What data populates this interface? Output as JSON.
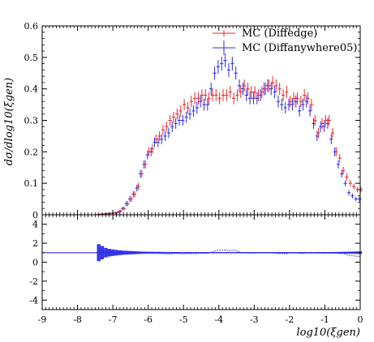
{
  "chart_data": {
    "type": "scatter",
    "main": {
      "ylabel": "dσ/dlog10(ξgen)",
      "ylim": [
        0,
        0.6
      ],
      "yticks": [
        0,
        0.1,
        0.2,
        0.3,
        0.4,
        0.5,
        0.6
      ],
      "ytick_labels": [
        "0",
        "0.1",
        "0.2",
        "0.3",
        "0.4",
        "0.5",
        "0.6"
      ],
      "legend_position": "top-right"
    },
    "ratio": {
      "ylim": [
        -5,
        5
      ],
      "yticks": [
        -4,
        -2,
        0,
        2,
        4
      ],
      "ytick_labels": [
        "-4",
        "-2",
        "0",
        "2",
        "4"
      ]
    },
    "xlim": [
      -9,
      0
    ],
    "xticks": [
      -9,
      -8,
      -7,
      -6,
      -5,
      -4,
      -3,
      -2,
      -1,
      0
    ],
    "xtick_labels": [
      "-9",
      "-8",
      "-7",
      "-6",
      "-5",
      "-4",
      "-3",
      "-2",
      "-1",
      "0"
    ],
    "xlabel": "log10(ξgen)",
    "x": [
      -7.4,
      -7.3,
      -7.2,
      -7.1,
      -7.0,
      -6.9,
      -6.8,
      -6.7,
      -6.6,
      -6.5,
      -6.4,
      -6.3,
      -6.2,
      -6.1,
      -6.0,
      -5.9,
      -5.8,
      -5.7,
      -5.6,
      -5.5,
      -5.4,
      -5.3,
      -5.2,
      -5.1,
      -5.0,
      -4.9,
      -4.8,
      -4.7,
      -4.6,
      -4.5,
      -4.4,
      -4.3,
      -4.2,
      -4.1,
      -4.0,
      -3.9,
      -3.8,
      -3.7,
      -3.6,
      -3.5,
      -3.4,
      -3.3,
      -3.2,
      -3.1,
      -3.0,
      -2.9,
      -2.8,
      -2.7,
      -2.6,
      -2.5,
      -2.4,
      -2.3,
      -2.2,
      -2.1,
      -2.0,
      -1.9,
      -1.8,
      -1.7,
      -1.6,
      -1.5,
      -1.4,
      -1.3,
      -1.2,
      -1.1,
      -1.0,
      -0.9,
      -0.8,
      -0.7,
      -0.6,
      -0.5,
      -0.4,
      -0.3,
      -0.2,
      -0.1,
      0.0
    ],
    "series": [
      {
        "name": "MC (Diffedge)",
        "color": "#e8262b",
        "values": [
          0.001,
          0.002,
          0.003,
          0.004,
          0.005,
          0.007,
          0.012,
          0.02,
          0.035,
          0.05,
          0.065,
          0.09,
          0.13,
          0.16,
          0.2,
          0.21,
          0.24,
          0.25,
          0.27,
          0.28,
          0.3,
          0.31,
          0.32,
          0.33,
          0.35,
          0.34,
          0.36,
          0.37,
          0.37,
          0.38,
          0.38,
          0.37,
          0.38,
          0.38,
          0.37,
          0.38,
          0.38,
          0.39,
          0.37,
          0.38,
          0.39,
          0.41,
          0.4,
          0.39,
          0.39,
          0.38,
          0.39,
          0.4,
          0.41,
          0.42,
          0.41,
          0.4,
          0.38,
          0.39,
          0.36,
          0.37,
          0.37,
          0.36,
          0.38,
          0.37,
          0.35,
          0.3,
          0.26,
          0.29,
          0.3,
          0.3,
          0.26,
          0.2,
          0.18,
          0.14,
          0.12,
          0.1,
          0.09,
          0.08,
          0.08
        ],
        "errors": [
          0.002,
          0.002,
          0.003,
          0.003,
          0.003,
          0.004,
          0.005,
          0.006,
          0.008,
          0.009,
          0.01,
          0.011,
          0.012,
          0.013,
          0.014,
          0.014,
          0.015,
          0.015,
          0.016,
          0.016,
          0.017,
          0.017,
          0.017,
          0.018,
          0.018,
          0.018,
          0.018,
          0.019,
          0.019,
          0.019,
          0.019,
          0.019,
          0.019,
          0.019,
          0.019,
          0.019,
          0.019,
          0.019,
          0.019,
          0.019,
          0.019,
          0.02,
          0.019,
          0.019,
          0.019,
          0.019,
          0.019,
          0.02,
          0.02,
          0.02,
          0.02,
          0.019,
          0.019,
          0.019,
          0.018,
          0.019,
          0.019,
          0.018,
          0.019,
          0.019,
          0.018,
          0.017,
          0.016,
          0.017,
          0.017,
          0.017,
          0.016,
          0.014,
          0.013,
          0.012,
          0.011,
          0.01,
          0.009,
          0.009,
          0.009
        ]
      },
      {
        "name": "MC (Diffanywhere05)",
        "color": "#2b2be8",
        "values": [
          0.001,
          0.002,
          0.003,
          0.004,
          0.005,
          0.006,
          0.01,
          0.02,
          0.035,
          0.05,
          0.065,
          0.085,
          0.13,
          0.16,
          0.19,
          0.2,
          0.23,
          0.23,
          0.24,
          0.25,
          0.26,
          0.28,
          0.29,
          0.3,
          0.3,
          0.31,
          0.32,
          0.33,
          0.34,
          0.36,
          0.35,
          0.35,
          0.4,
          0.45,
          0.47,
          0.48,
          0.49,
          0.46,
          0.48,
          0.45,
          0.41,
          0.4,
          0.38,
          0.37,
          0.37,
          0.37,
          0.38,
          0.4,
          0.41,
          0.4,
          0.39,
          0.36,
          0.35,
          0.34,
          0.35,
          0.35,
          0.36,
          0.33,
          0.35,
          0.36,
          0.33,
          0.29,
          0.25,
          0.28,
          0.28,
          0.29,
          0.24,
          0.2,
          0.16,
          0.13,
          0.1,
          0.07,
          0.06,
          0.05,
          0.05
        ],
        "errors": [
          0.002,
          0.002,
          0.003,
          0.003,
          0.003,
          0.004,
          0.005,
          0.006,
          0.008,
          0.009,
          0.01,
          0.011,
          0.012,
          0.013,
          0.014,
          0.014,
          0.015,
          0.015,
          0.016,
          0.016,
          0.016,
          0.017,
          0.017,
          0.017,
          0.017,
          0.018,
          0.018,
          0.018,
          0.019,
          0.019,
          0.019,
          0.019,
          0.02,
          0.021,
          0.022,
          0.022,
          0.022,
          0.022,
          0.022,
          0.021,
          0.02,
          0.02,
          0.019,
          0.019,
          0.019,
          0.019,
          0.019,
          0.02,
          0.02,
          0.02,
          0.02,
          0.019,
          0.019,
          0.018,
          0.019,
          0.019,
          0.019,
          0.018,
          0.019,
          0.019,
          0.018,
          0.017,
          0.016,
          0.017,
          0.017,
          0.017,
          0.016,
          0.014,
          0.013,
          0.012,
          0.01,
          0.009,
          0.008,
          0.007,
          0.007
        ]
      }
    ],
    "ratio_band_halfwidths": [
      0.9,
      0.7,
      0.5,
      0.4,
      0.35,
      0.3,
      0.25,
      0.22,
      0.2,
      0.18,
      0.16,
      0.14,
      0.12,
      0.11,
      0.1,
      0.1,
      0.09,
      0.09,
      0.08,
      0.08,
      0.08,
      0.07,
      0.07,
      0.07,
      0.07,
      0.07,
      0.07,
      0.06,
      0.06,
      0.06,
      0.06,
      0.06,
      0.06,
      0.06,
      0.06,
      0.06,
      0.06,
      0.06,
      0.06,
      0.06,
      0.06,
      0.06,
      0.06,
      0.06,
      0.06,
      0.06,
      0.06,
      0.06,
      0.06,
      0.06,
      0.06,
      0.06,
      0.06,
      0.06,
      0.06,
      0.06,
      0.06,
      0.06,
      0.06,
      0.06,
      0.06,
      0.06,
      0.07,
      0.07,
      0.07,
      0.07,
      0.07,
      0.08,
      0.08,
      0.09,
      0.1,
      0.11,
      0.12,
      0.13,
      0.14
    ]
  }
}
